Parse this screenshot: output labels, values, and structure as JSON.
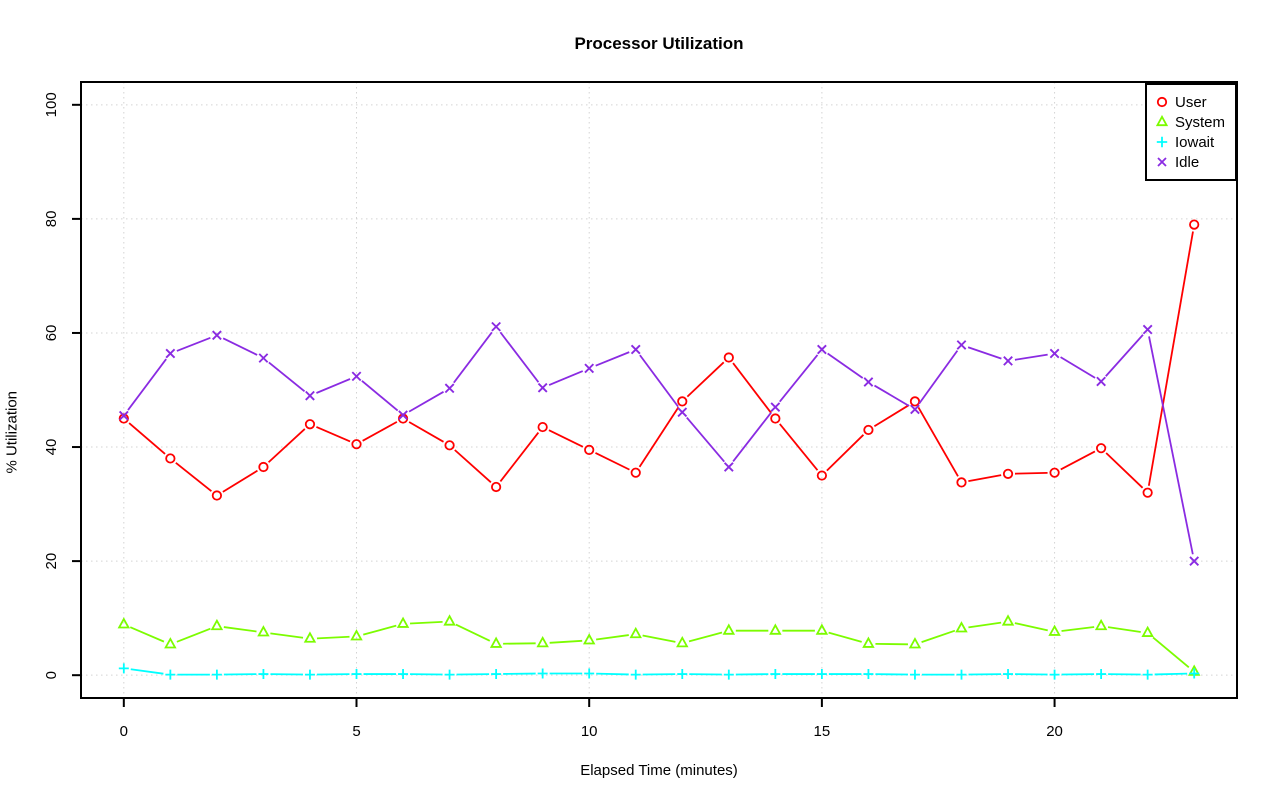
{
  "chart_data": {
    "type": "line",
    "title": "Processor Utilization",
    "xlabel": "Elapsed Time (minutes)",
    "ylabel": "% Utilization",
    "xlim": [
      0,
      23
    ],
    "ylim": [
      0,
      100
    ],
    "xticks": [
      0,
      5,
      10,
      15,
      20
    ],
    "yticks": [
      0,
      20,
      40,
      60,
      80,
      100
    ],
    "grid": "dotted",
    "grid_color": "#d3d3d3",
    "frame_color": "#000000",
    "legend_position": "top-right",
    "x": [
      0,
      1,
      2,
      3,
      4,
      5,
      6,
      7,
      8,
      9,
      10,
      11,
      12,
      13,
      14,
      15,
      16,
      17,
      18,
      19,
      20,
      21,
      22,
      23
    ],
    "series": [
      {
        "name": "User",
        "color": "#ff0000",
        "marker": "circle",
        "values": [
          45,
          38,
          31.5,
          36.5,
          44,
          40.5,
          45,
          40.3,
          33,
          43.5,
          39.5,
          35.5,
          48,
          55.7,
          45,
          35,
          43,
          48,
          33.8,
          35.3,
          35.5,
          39.8,
          32,
          79
        ]
      },
      {
        "name": "System",
        "color": "#7cfc00",
        "marker": "triangle",
        "values": [
          8.9,
          5.4,
          8.6,
          7.5,
          6.4,
          6.8,
          9,
          9.4,
          5.5,
          5.6,
          6.1,
          7.2,
          5.6,
          7.8,
          7.8,
          7.8,
          5.5,
          5.4,
          8.2,
          9.4,
          7.6,
          8.6,
          7.4,
          0.6
        ]
      },
      {
        "name": "Iowait",
        "color": "#00ffff",
        "marker": "plus",
        "values": [
          1.2,
          0.1,
          0.1,
          0.2,
          0.1,
          0.2,
          0.2,
          0.1,
          0.2,
          0.3,
          0.3,
          0.1,
          0.2,
          0.1,
          0.2,
          0.2,
          0.2,
          0.1,
          0.1,
          0.2,
          0.1,
          0.2,
          0.1,
          0.3
        ]
      },
      {
        "name": "Idle",
        "color": "#8a2be2",
        "marker": "x",
        "values": [
          45.5,
          56.4,
          59.6,
          55.6,
          49,
          52.4,
          45.6,
          50.3,
          61.1,
          50.4,
          53.8,
          57.1,
          46.1,
          36.5,
          47,
          57.1,
          51.4,
          46.6,
          57.9,
          55.1,
          56.4,
          51.5,
          60.6,
          20
        ]
      }
    ]
  }
}
